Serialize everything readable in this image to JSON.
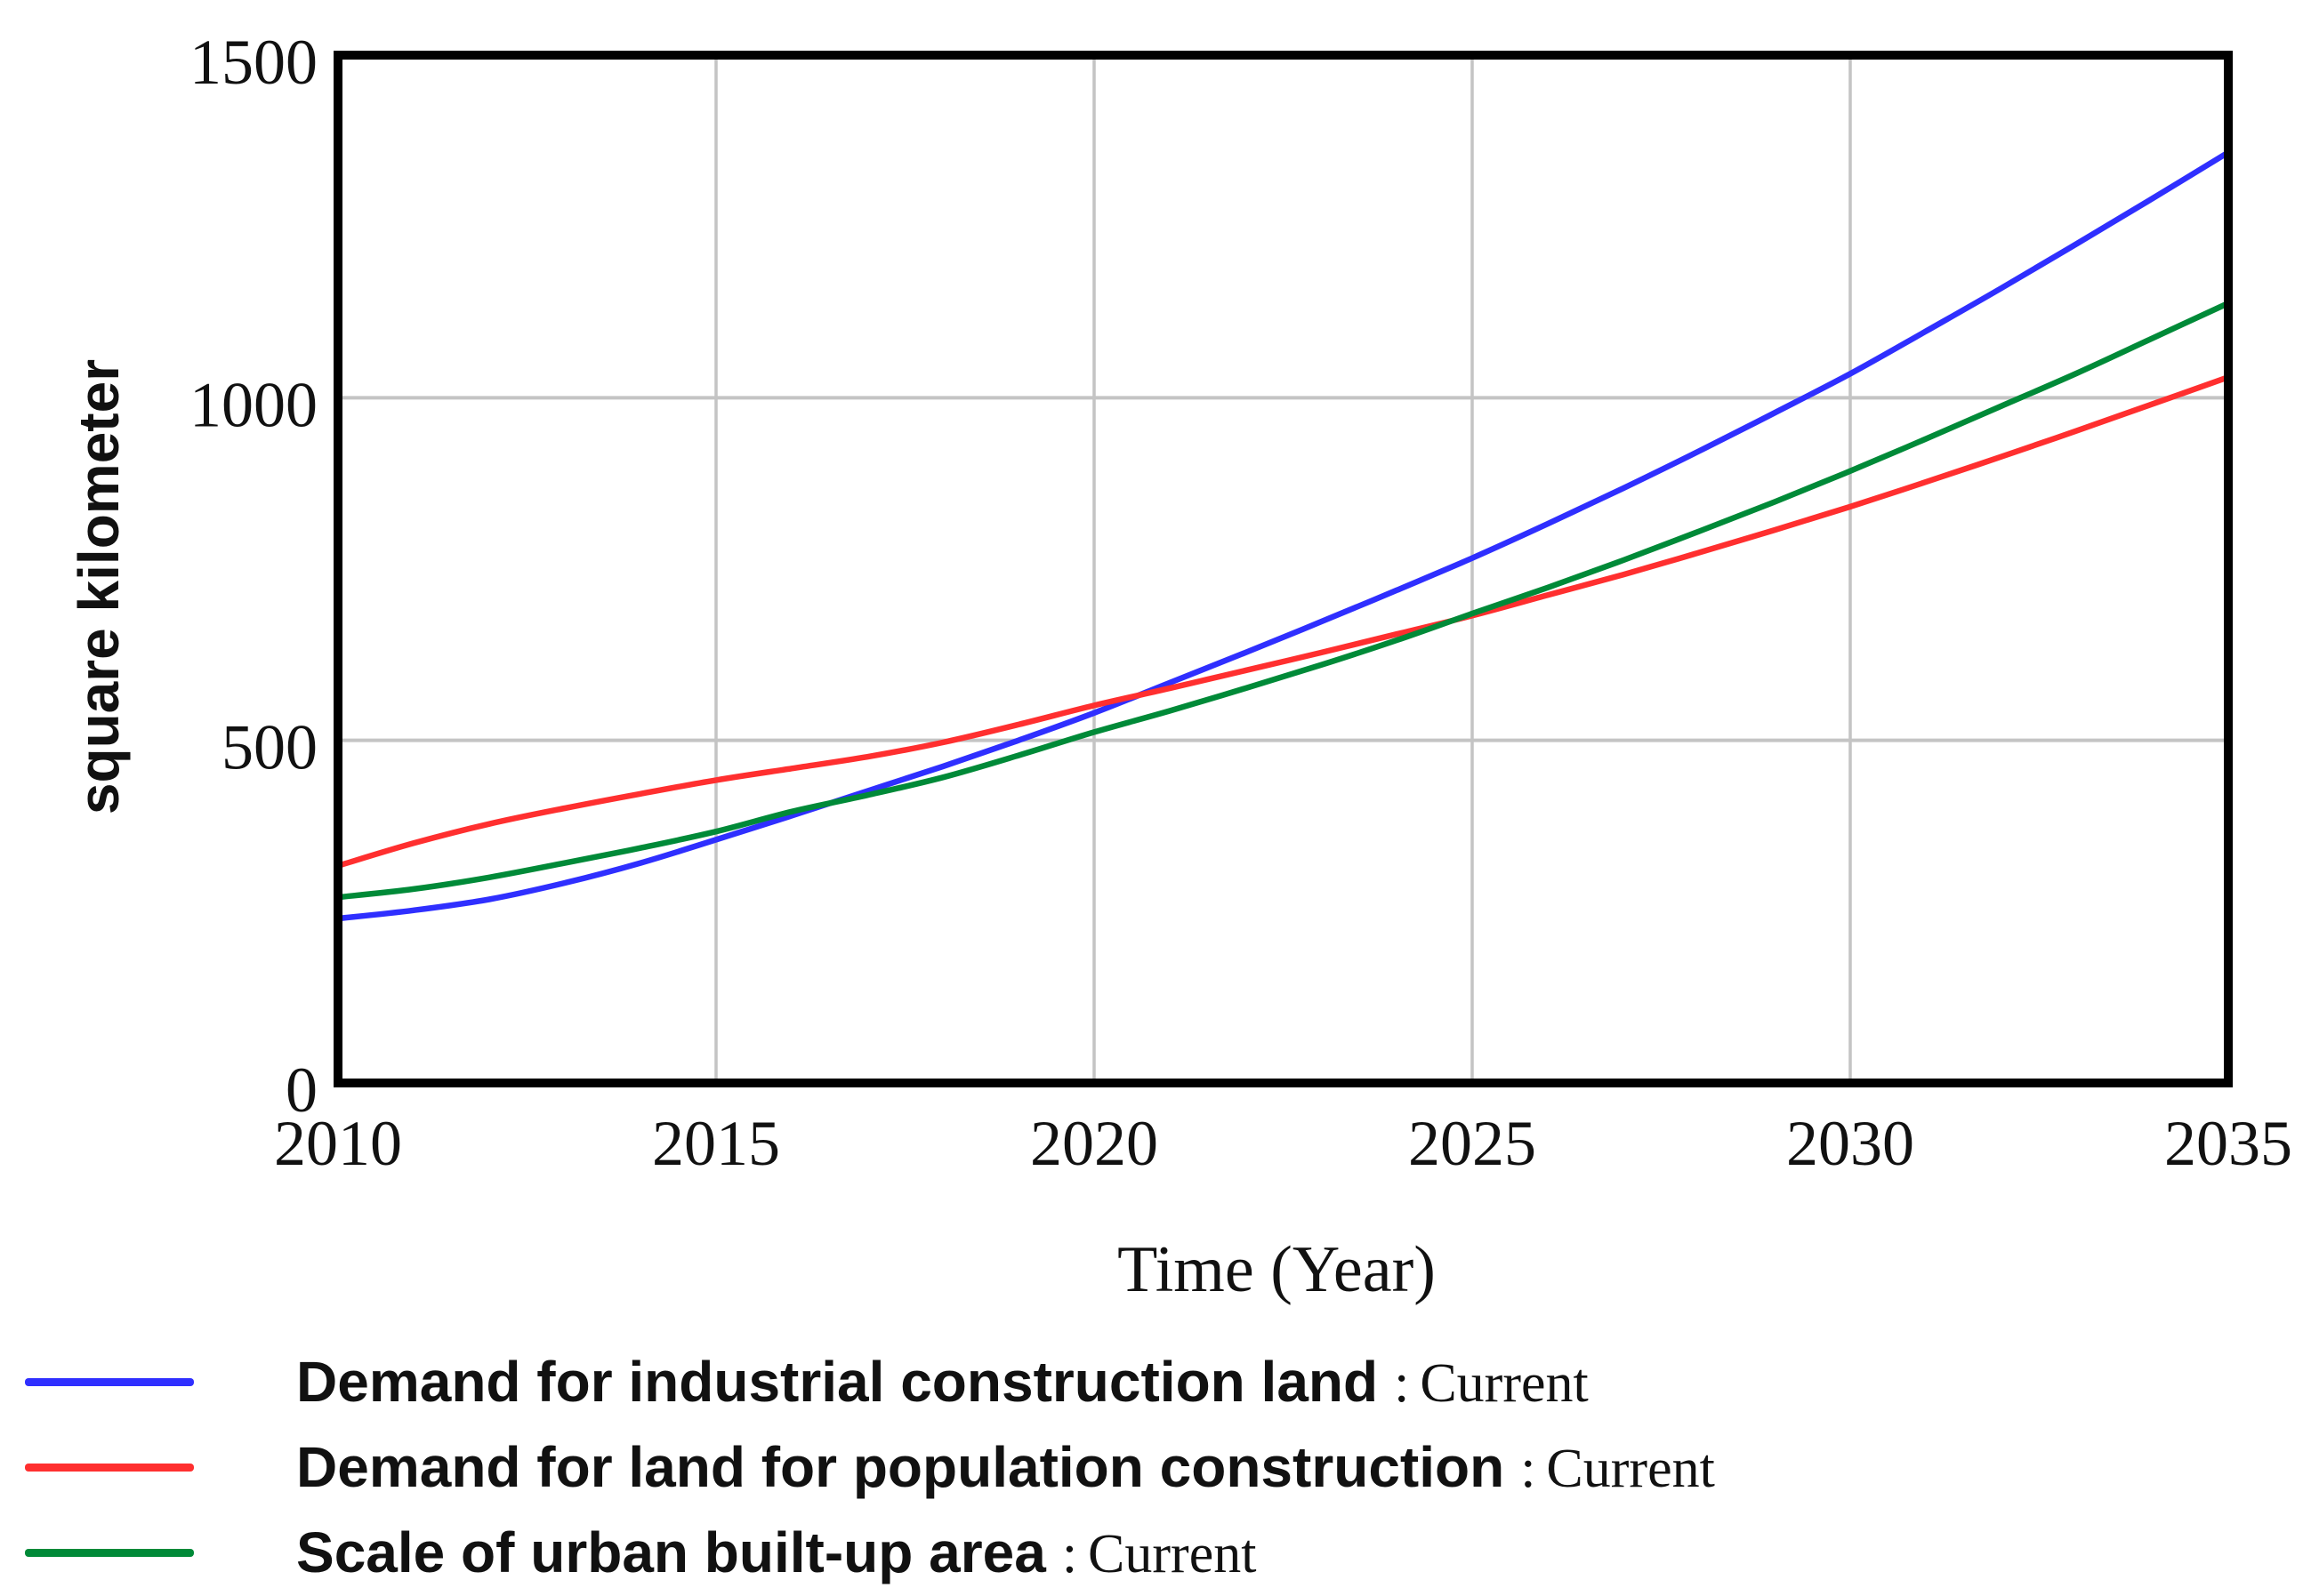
{
  "figure": {
    "background": "#ffffff",
    "frame_color": "#000000",
    "grid_color": "#c4c4c4",
    "text_color": "#111111"
  },
  "chart_data": {
    "type": "line",
    "title": "",
    "xlabel": "Time (Year)",
    "ylabel": "square kilometer",
    "xlim": [
      2010,
      2035
    ],
    "ylim": [
      0,
      1500
    ],
    "x_ticks": [
      2010,
      2015,
      2020,
      2025,
      2030,
      2035
    ],
    "y_ticks": [
      0,
      500,
      1000,
      1500
    ],
    "grid": true,
    "legend_position": "bottom-left",
    "x": [
      2010,
      2011,
      2012,
      2013,
      2014,
      2015,
      2016,
      2017,
      2018,
      2019,
      2020,
      2021,
      2022,
      2023,
      2024,
      2025,
      2026,
      2027,
      2028,
      2029,
      2030,
      2031,
      2032,
      2033,
      2034,
      2035
    ],
    "series": [
      {
        "name": "Demand for industrial construction land",
        "slug": "industrial-construction-land",
        "sep": ":",
        "suffix": "Current",
        "color": "#2f2fff",
        "values": [
          240,
          252,
          268,
          292,
          321,
          355,
          390,
          426,
          462,
          500,
          540,
          584,
          628,
          673,
          719,
          766,
          816,
          868,
          922,
          978,
          1035,
          1097,
          1160,
          1225,
          1291,
          1358
        ]
      },
      {
        "name": "Demand for land for population construction",
        "slug": "population-construction-land",
        "sep": ":",
        "suffix": "Current",
        "color": "#ff2f2f",
        "values": [
          317,
          350,
          378,
          401,
          422,
          442,
          459,
          476,
          497,
          523,
          551,
          576,
          602,
          628,
          655,
          682,
          712,
          742,
          774,
          807,
          841,
          877,
          914,
          952,
          991,
          1030
        ]
      },
      {
        "name": "Scale of urban built-up area",
        "slug": "urban-built-up-area",
        "sep": ":",
        "suffix": "Current",
        "color": "#008a38",
        "values": [
          271,
          283,
          300,
          321,
          343,
          367,
          396,
          420,
          446,
          478,
          512,
          543,
          576,
          610,
          646,
          685,
          723,
          763,
          805,
          848,
          893,
          940,
          988,
          1036,
          1087,
          1138
        ]
      }
    ]
  }
}
